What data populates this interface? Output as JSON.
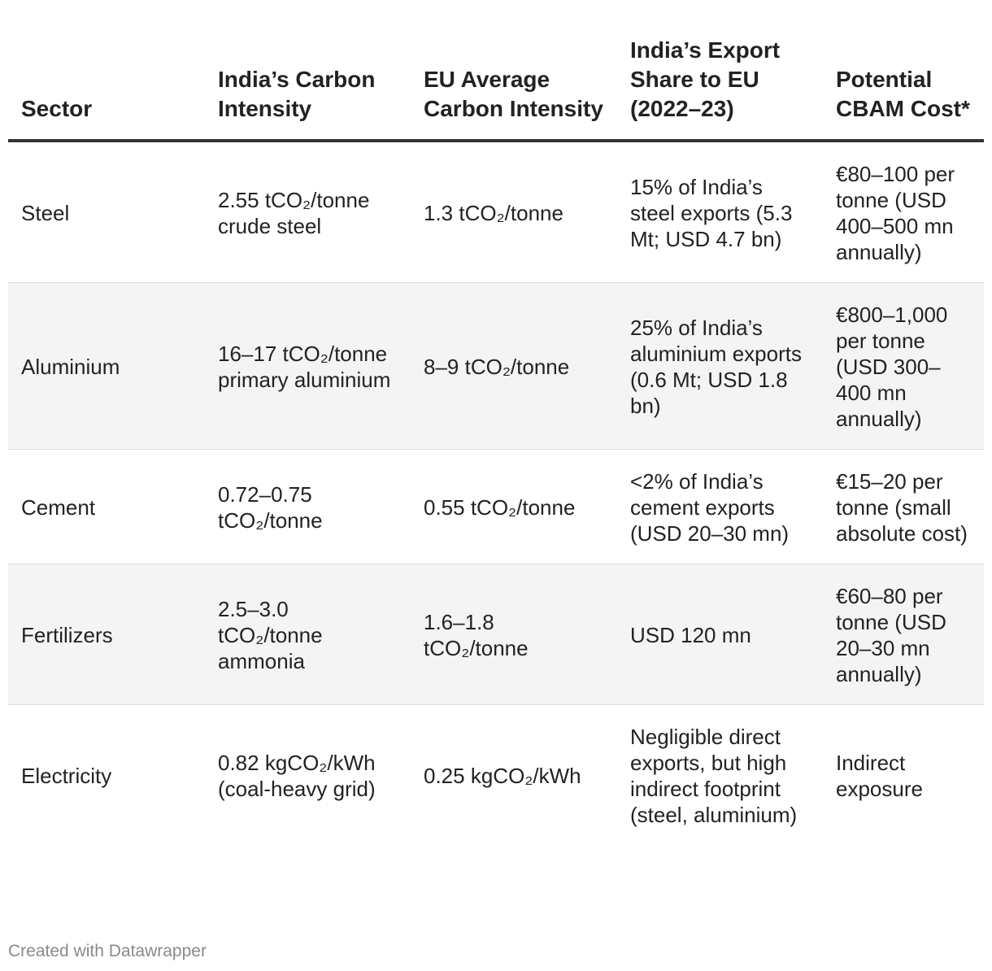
{
  "table": {
    "headers": [
      "Sector",
      "India’s Carbon Intensity",
      "EU Average Carbon Intensity",
      "India’s Export Share to EU (2022–23)",
      "Potential CBAM Cost*"
    ],
    "rows": [
      {
        "sector": "Steel",
        "india_intensity": "2.55 tCO₂/tonne crude steel",
        "eu_intensity": "1.3 tCO₂/tonne",
        "export_share": "15% of India’s steel exports (5.3 Mt; USD 4.7 bn)",
        "cbam_cost": "€80–100 per tonne (USD 400–500 mn annually)"
      },
      {
        "sector": "Aluminium",
        "india_intensity": "16–17 tCO₂/tonne primary aluminium",
        "eu_intensity": "8–9 tCO₂/tonne",
        "export_share": "25% of India’s aluminium exports (0.6 Mt; USD 1.8 bn)",
        "cbam_cost": "€800–1,000 per tonne (USD 300–400 mn annually)"
      },
      {
        "sector": "Cement",
        "india_intensity": "0.72–0.75 tCO₂/tonne",
        "eu_intensity": "0.55 tCO₂/tonne",
        "export_share": "<2% of India’s cement exports (USD 20–30 mn)",
        "cbam_cost": "€15–20 per tonne (small absolute cost)"
      },
      {
        "sector": "Fertilizers",
        "india_intensity": "2.5–3.0 tCO₂/tonne ammonia",
        "eu_intensity": "1.6–1.8 tCO₂/tonne",
        "export_share": "USD 120 mn",
        "cbam_cost": "€60–80 per tonne (USD 20–30 mn annually)"
      },
      {
        "sector": "Electricity",
        "india_intensity": "0.82 kgCO₂/kWh (coal-heavy grid)",
        "eu_intensity": "0.25 kgCO₂/kWh",
        "export_share": "Negligible direct exports, but high indirect footprint (steel, aluminium)",
        "cbam_cost": "Indirect exposure"
      }
    ]
  },
  "footer": {
    "credit": "Created with Datawrapper"
  }
}
